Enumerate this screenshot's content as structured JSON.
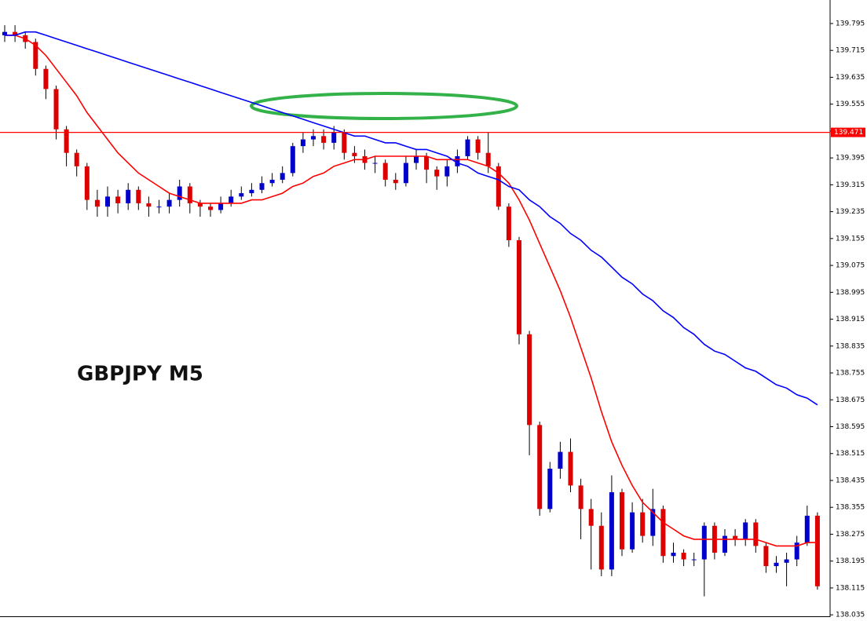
{
  "chart_data": {
    "type": "candlestick",
    "title": "GBPJPY M5",
    "ylim": [
      138.026,
      139.865
    ],
    "yticks": [
      138.035,
      138.115,
      138.195,
      138.275,
      138.355,
      138.435,
      138.515,
      138.595,
      138.675,
      138.755,
      138.835,
      138.915,
      138.995,
      139.075,
      139.155,
      139.235,
      139.315,
      139.395,
      139.475,
      139.555,
      139.635,
      139.715,
      139.795
    ],
    "up_color": "#0000cc",
    "down_color": "#dd0000",
    "price_line": {
      "value": 139.471,
      "color": "#ff0000"
    },
    "open": [
      139.76,
      139.77,
      139.76,
      139.74,
      139.66,
      139.6,
      139.48,
      139.41,
      139.37,
      139.27,
      139.25,
      139.28,
      139.26,
      139.3,
      139.26,
      139.25,
      139.25,
      139.27,
      139.31,
      139.26,
      139.25,
      139.24,
      139.26,
      139.28,
      139.29,
      139.3,
      139.32,
      139.33,
      139.35,
      139.43,
      139.45,
      139.46,
      139.44,
      139.47,
      139.41,
      139.4,
      139.38,
      139.38,
      139.33,
      139.32,
      139.38,
      139.4,
      139.36,
      139.34,
      139.37,
      139.4,
      139.45,
      139.41,
      139.37,
      139.25,
      139.15,
      138.87,
      138.6,
      138.35,
      138.47,
      138.52,
      138.42,
      138.35,
      138.3,
      138.17,
      138.4,
      138.23,
      138.34,
      138.27,
      138.35,
      138.21,
      138.22,
      138.2,
      138.2,
      138.3,
      138.22,
      138.27,
      138.26,
      138.31,
      138.24,
      138.18,
      138.19,
      138.2,
      138.25,
      138.33
    ],
    "high": [
      139.79,
      139.79,
      139.77,
      139.75,
      139.67,
      139.61,
      139.49,
      139.42,
      139.38,
      139.3,
      139.31,
      139.3,
      139.32,
      139.31,
      139.28,
      139.27,
      139.29,
      139.33,
      139.32,
      139.27,
      139.26,
      139.28,
      139.3,
      139.31,
      139.32,
      139.34,
      139.35,
      139.37,
      139.44,
      139.47,
      139.48,
      139.48,
      139.49,
      139.48,
      139.43,
      139.42,
      139.4,
      139.39,
      139.35,
      139.4,
      139.42,
      139.41,
      139.37,
      139.39,
      139.42,
      139.46,
      139.46,
      139.47,
      139.38,
      139.26,
      139.16,
      138.88,
      138.61,
      138.49,
      138.55,
      138.56,
      138.44,
      138.38,
      138.34,
      138.45,
      138.41,
      138.37,
      138.38,
      138.41,
      138.36,
      138.25,
      138.23,
      138.22,
      138.31,
      138.31,
      138.29,
      138.29,
      138.32,
      138.32,
      138.25,
      138.21,
      138.22,
      138.27,
      138.36,
      138.34
    ],
    "low": [
      139.74,
      139.74,
      139.72,
      139.64,
      139.57,
      139.45,
      139.37,
      139.34,
      139.24,
      139.22,
      139.22,
      139.23,
      139.24,
      139.24,
      139.22,
      139.23,
      139.23,
      139.25,
      139.23,
      139.22,
      139.22,
      139.23,
      139.25,
      139.27,
      139.28,
      139.29,
      139.31,
      139.32,
      139.34,
      139.41,
      139.43,
      139.42,
      139.42,
      139.39,
      139.38,
      139.36,
      139.35,
      139.31,
      139.3,
      139.31,
      139.36,
      139.32,
      139.3,
      139.31,
      139.35,
      139.39,
      139.39,
      139.35,
      139.24,
      139.13,
      138.84,
      138.51,
      138.33,
      138.34,
      138.44,
      138.4,
      138.26,
      138.17,
      138.15,
      138.15,
      138.21,
      138.22,
      138.25,
      138.24,
      138.19,
      138.19,
      138.18,
      138.18,
      138.09,
      138.2,
      138.21,
      138.24,
      138.24,
      138.22,
      138.16,
      138.16,
      138.12,
      138.18,
      138.24,
      138.11
    ],
    "close": [
      139.77,
      139.76,
      139.74,
      139.66,
      139.6,
      139.48,
      139.41,
      139.37,
      139.27,
      139.25,
      139.28,
      139.26,
      139.3,
      139.26,
      139.25,
      139.25,
      139.27,
      139.31,
      139.26,
      139.25,
      139.24,
      139.26,
      139.28,
      139.29,
      139.3,
      139.32,
      139.33,
      139.35,
      139.43,
      139.45,
      139.46,
      139.44,
      139.47,
      139.41,
      139.4,
      139.38,
      139.38,
      139.33,
      139.32,
      139.38,
      139.4,
      139.36,
      139.34,
      139.37,
      139.4,
      139.45,
      139.41,
      139.37,
      139.25,
      139.15,
      138.87,
      138.6,
      138.35,
      138.47,
      138.52,
      138.42,
      138.35,
      138.3,
      138.17,
      138.4,
      138.23,
      138.34,
      138.27,
      138.35,
      138.21,
      138.22,
      138.2,
      138.2,
      138.3,
      138.22,
      138.27,
      138.26,
      138.31,
      138.24,
      138.18,
      138.19,
      138.2,
      138.25,
      138.33,
      138.12
    ],
    "series": [
      {
        "color": "#ff0000",
        "values": [
          139.76,
          139.76,
          139.75,
          139.73,
          139.7,
          139.66,
          139.62,
          139.58,
          139.53,
          139.49,
          139.45,
          139.41,
          139.38,
          139.35,
          139.33,
          139.31,
          139.29,
          139.28,
          139.27,
          139.26,
          139.26,
          139.26,
          139.26,
          139.26,
          139.27,
          139.27,
          139.28,
          139.29,
          139.31,
          139.32,
          139.34,
          139.35,
          139.37,
          139.38,
          139.39,
          139.39,
          139.4,
          139.4,
          139.4,
          139.4,
          139.4,
          139.4,
          139.39,
          139.39,
          139.39,
          139.39,
          139.38,
          139.37,
          139.35,
          139.32,
          139.27,
          139.21,
          139.14,
          139.07,
          139.0,
          138.92,
          138.83,
          138.74,
          138.64,
          138.55,
          138.48,
          138.42,
          138.37,
          138.34,
          138.31,
          138.29,
          138.27,
          138.26,
          138.26,
          138.26,
          138.26,
          138.26,
          138.26,
          138.26,
          138.25,
          138.24,
          138.24,
          138.24,
          138.25,
          138.25
        ]
      },
      {
        "color": "#0000ff",
        "values": [
          139.76,
          139.76,
          139.77,
          139.77,
          139.76,
          139.75,
          139.74,
          139.73,
          139.72,
          139.71,
          139.7,
          139.69,
          139.68,
          139.67,
          139.66,
          139.65,
          139.64,
          139.63,
          139.62,
          139.61,
          139.6,
          139.59,
          139.58,
          139.57,
          139.56,
          139.55,
          139.54,
          139.53,
          139.52,
          139.51,
          139.5,
          139.49,
          139.48,
          139.47,
          139.46,
          139.46,
          139.45,
          139.44,
          139.44,
          139.43,
          139.42,
          139.42,
          139.41,
          139.4,
          139.38,
          139.37,
          139.35,
          139.34,
          139.33,
          139.31,
          139.3,
          139.27,
          139.25,
          139.22,
          139.2,
          139.17,
          139.15,
          139.12,
          139.1,
          139.07,
          139.04,
          139.02,
          138.99,
          138.97,
          138.94,
          138.92,
          138.89,
          138.87,
          138.84,
          138.82,
          138.81,
          138.79,
          138.77,
          138.76,
          138.74,
          138.72,
          138.71,
          138.69,
          138.68,
          138.66
        ]
      }
    ]
  }
}
